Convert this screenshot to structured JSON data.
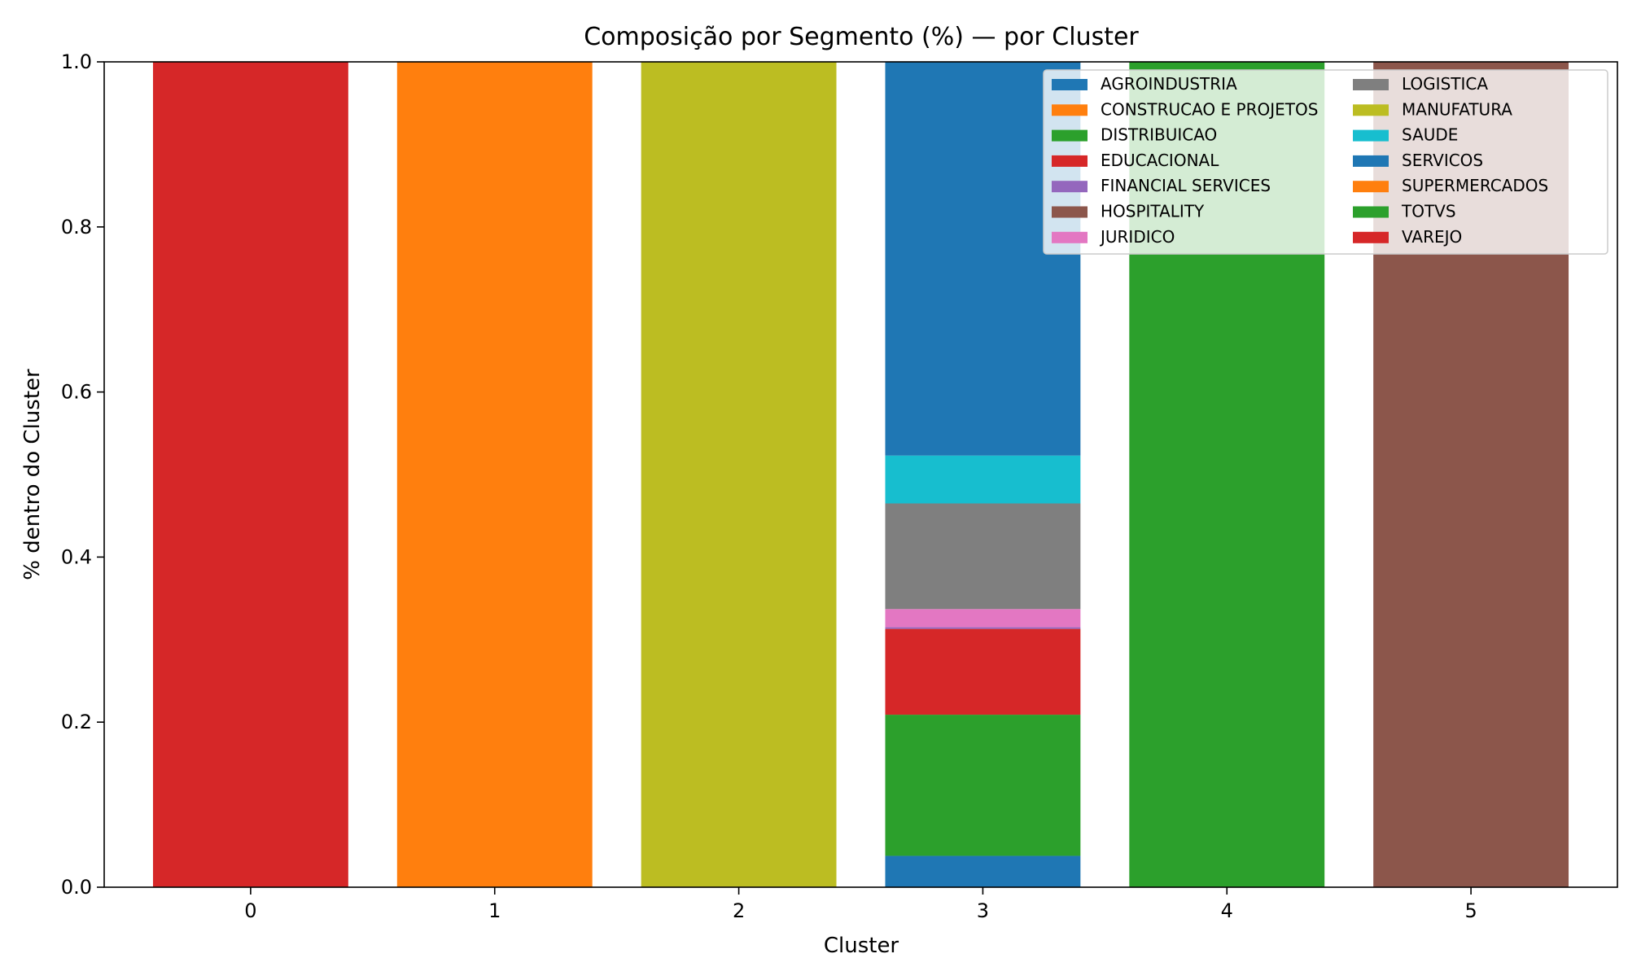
{
  "chart_data": {
    "type": "bar",
    "stacked": true,
    "title": "Composição por Segmento (%) — por Cluster",
    "xlabel": "Cluster",
    "ylabel": "% dentro do Cluster",
    "categories": [
      "0",
      "1",
      "2",
      "3",
      "4",
      "5"
    ],
    "ylim": [
      0,
      1.0
    ],
    "yticks": [
      "0.0",
      "0.2",
      "0.4",
      "0.6",
      "0.8",
      "1.0"
    ],
    "grid": false,
    "legend_position": "top-right",
    "series": [
      {
        "name": "AGROINDUSTRIA",
        "color": "#1f77b4",
        "values": [
          0,
          0,
          0,
          0.038,
          0,
          0
        ]
      },
      {
        "name": "CONSTRUCAO E PROJETOS",
        "color": "#ff7f0e",
        "values": [
          0,
          1.0,
          0,
          0,
          0,
          0
        ]
      },
      {
        "name": "DISTRIBUICAO",
        "color": "#2ca02c",
        "values": [
          0,
          0,
          0,
          0.171,
          0,
          0
        ]
      },
      {
        "name": "EDUCACIONAL",
        "color": "#d62728",
        "values": [
          0,
          0,
          0,
          0.104,
          0,
          0
        ]
      },
      {
        "name": "FINANCIAL SERVICES",
        "color": "#9467bd",
        "values": [
          0,
          0,
          0,
          0.002,
          0,
          0
        ]
      },
      {
        "name": "HOSPITALITY",
        "color": "#8c564b",
        "values": [
          0,
          0,
          0,
          0,
          0,
          1.0
        ]
      },
      {
        "name": "JURIDICO",
        "color": "#e377c2",
        "values": [
          0,
          0,
          0,
          0.022,
          0,
          0
        ]
      },
      {
        "name": "LOGISTICA",
        "color": "#7f7f7f",
        "values": [
          0,
          0,
          0,
          0.128,
          0,
          0
        ]
      },
      {
        "name": "MANUFATURA",
        "color": "#bcbd22",
        "values": [
          0,
          0,
          1.0,
          0,
          0,
          0
        ]
      },
      {
        "name": "SAUDE",
        "color": "#17becf",
        "values": [
          0,
          0,
          0,
          0.058,
          0,
          0
        ]
      },
      {
        "name": "SERVICOS",
        "color": "#1f77b4",
        "values": [
          0,
          0,
          0,
          0.477,
          0,
          0
        ]
      },
      {
        "name": "SUPERMERCADOS",
        "color": "#ff7f0e",
        "values": [
          0,
          0,
          0,
          0,
          0,
          0
        ]
      },
      {
        "name": "TOTVS",
        "color": "#2ca02c",
        "values": [
          0,
          0,
          0,
          0,
          1.0,
          0
        ]
      },
      {
        "name": "VAREJO",
        "color": "#d62728",
        "values": [
          1.0,
          0,
          0,
          0,
          0,
          0
        ]
      }
    ]
  }
}
